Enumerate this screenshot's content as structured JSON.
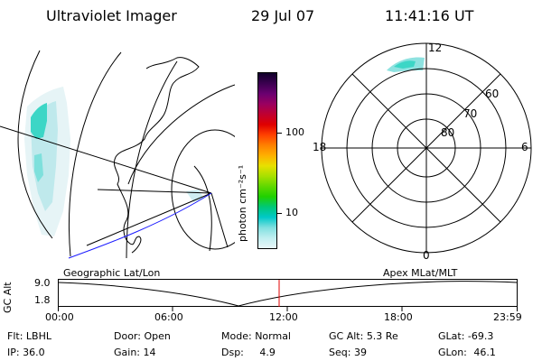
{
  "header": {
    "title": "Ultraviolet Imager",
    "date": "29 Jul 07",
    "time": "11:41:16 UT"
  },
  "colorbar": {
    "unit_label": "photon cm⁻²s⁻¹",
    "ticks": [
      "100",
      "10"
    ],
    "colors": [
      "#10002a",
      "#3b0050",
      "#6a0070",
      "#9a0060",
      "#c00030",
      "#e00000",
      "#ff4000",
      "#ff8000",
      "#ffb000",
      "#e8e000",
      "#a8e000",
      "#60d800",
      "#20d000",
      "#00c878",
      "#00c8c8",
      "#80e0e0",
      "#c0eef0",
      "#e8f6f8"
    ]
  },
  "polar_plot": {
    "mlt_labels": {
      "top": "12",
      "left": "18",
      "right": "6",
      "bottom": "0"
    },
    "lat_labels": [
      "60",
      "70",
      "80"
    ]
  },
  "altitude_plot": {
    "left_label": "Geographic Lat/Lon",
    "right_label": "Apex MLat/MLT",
    "y_axis_label": "GC Alt",
    "y_max": "9.0",
    "y_min": "1.8",
    "x_ticks": [
      "00:00",
      "06:00",
      "12:00",
      "18:00",
      "23:59"
    ],
    "current_marker_color": "#e00000"
  },
  "status": {
    "flt_label": "Flt:",
    "flt_value": "LBHL",
    "ip_label": "IP:",
    "ip_value": "36.0",
    "door_label": "Door:",
    "door_value": "Open",
    "gain_label": "Gain:",
    "gain_value": "14",
    "mode_label": "Mode:",
    "mode_value": "Normal",
    "dsp_label": "Dsp:",
    "dsp_value": "4.9",
    "gcalt_label": "GC Alt:",
    "gcalt_value": "5.3 Re",
    "seq_label": "Seq:",
    "seq_value": "39",
    "glat_label": "GLat:",
    "glat_value": "-69.3",
    "glon_label": "GLon:",
    "glon_value": "46.1"
  }
}
